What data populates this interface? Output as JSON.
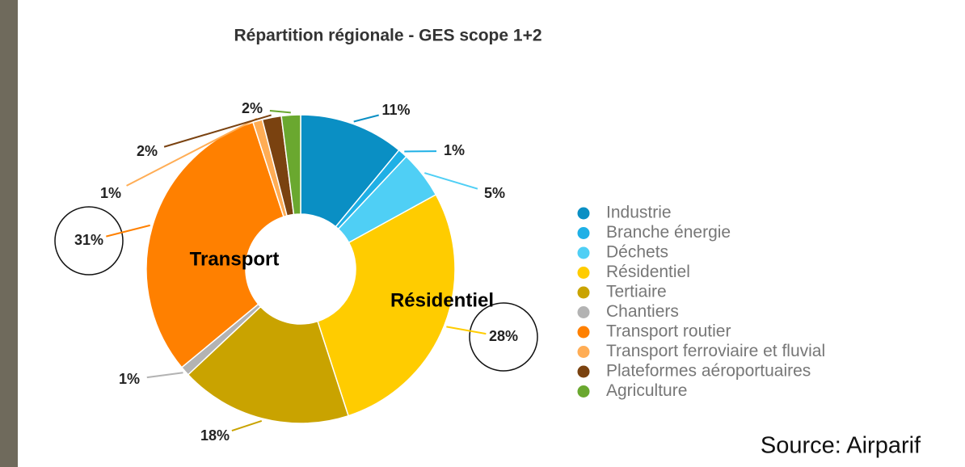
{
  "chart_data": {
    "type": "donut",
    "title": "Répartition régionale - GES scope 1+2",
    "categories": [
      "Industrie",
      "Branche énergie",
      "Déchets",
      "Résidentiel",
      "Tertiaire",
      "Chantiers",
      "Transport routier",
      "Transport ferroviaire et fluvial",
      "Plateformes aéroportuaires",
      "Agriculture"
    ],
    "values": [
      11,
      1,
      5,
      28,
      18,
      1,
      31,
      1,
      2,
      2
    ],
    "value_labels": [
      "11%",
      "1%",
      "5%",
      "28%",
      "18%",
      "1%",
      "31%",
      "1%",
      "2%",
      "2%"
    ],
    "colors": [
      "#0a8fc4",
      "#1fb0e6",
      "#4fcff5",
      "#ffcc00",
      "#c9a300",
      "#b3b3b3",
      "#ff8000",
      "#ffad55",
      "#7a4210",
      "#6aa82f"
    ],
    "annotations": [
      "Transport",
      "Résidentiel"
    ],
    "source": "Source: Airparif",
    "legend": "right"
  }
}
